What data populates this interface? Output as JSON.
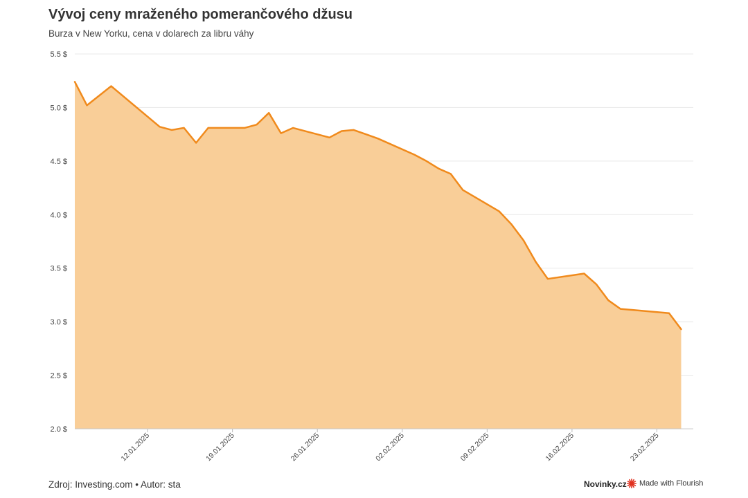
{
  "title": "Vývoj ceny mraženého pomerančového džusu",
  "subtitle": "Burza v New Yorku, cena v dolarech za libru váhy",
  "footer": {
    "source": "Zdroj: Investing.com • Autor: sta",
    "brand": "Novinky.cz",
    "flourish": "Made with Flourish",
    "flourish_icon": "flourish-burst-icon"
  },
  "colors": {
    "line": "#f08a1c",
    "area": "#f9ce98",
    "grid": "#e8e8e8",
    "flourish_icon": "#e0311f"
  },
  "chart_data": {
    "type": "area",
    "ylim": [
      2.0,
      5.5
    ],
    "yticks": [
      2.0,
      2.5,
      3.0,
      3.5,
      4.0,
      4.5,
      5.0,
      5.5
    ],
    "ytick_labels": [
      "2.0 $",
      "2.5 $",
      "3.0 $",
      "3.5 $",
      "4.0 $",
      "4.5 $",
      "5.0 $",
      "5.5 $"
    ],
    "xlim": [
      "2025-01-06",
      "2025-02-26"
    ],
    "xticks": [
      "2025-01-12",
      "2025-01-19",
      "2025-01-26",
      "2025-02-02",
      "2025-02-09",
      "2025-02-16",
      "2025-02-23"
    ],
    "xtick_labels": [
      "12.01.2025",
      "19.01.2025",
      "26.01.2025",
      "02.02.2025",
      "09.02.2025",
      "16.02.2025",
      "23.02.2025"
    ],
    "grid": true,
    "legend": "none",
    "series": [
      {
        "x": [
          "2025-01-06",
          "2025-01-07",
          "2025-01-09",
          "2025-01-13",
          "2025-01-14",
          "2025-01-15",
          "2025-01-16",
          "2025-01-17",
          "2025-01-20",
          "2025-01-21",
          "2025-01-22",
          "2025-01-23",
          "2025-01-24",
          "2025-01-27",
          "2025-01-28",
          "2025-01-29",
          "2025-01-30",
          "2025-01-31",
          "2025-02-03",
          "2025-02-04",
          "2025-02-05",
          "2025-02-06",
          "2025-02-07",
          "2025-02-10",
          "2025-02-11",
          "2025-02-12",
          "2025-02-13",
          "2025-02-14",
          "2025-02-17",
          "2025-02-18",
          "2025-02-19",
          "2025-02-20",
          "2025-02-21",
          "2025-02-24",
          "2025-02-25"
        ],
        "values": [
          5.24,
          5.02,
          5.2,
          4.82,
          4.79,
          4.81,
          4.67,
          4.81,
          4.81,
          4.84,
          4.95,
          4.76,
          4.81,
          4.72,
          4.78,
          4.79,
          4.75,
          4.71,
          4.56,
          4.5,
          4.43,
          4.38,
          4.23,
          4.03,
          3.91,
          3.76,
          3.56,
          3.4,
          3.45,
          3.35,
          3.2,
          3.12,
          3.11,
          3.08,
          2.93
        ]
      }
    ]
  }
}
